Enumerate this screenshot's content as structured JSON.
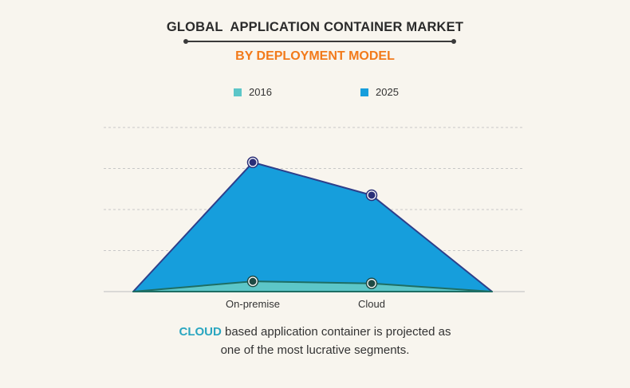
{
  "header": {
    "title": "GLOBAL  APPLICATION CONTAINER MARKET",
    "subtitle": "BY DEPLOYMENT MODEL"
  },
  "colors": {
    "series_2016_fill": "#5cc6c8",
    "series_2016_line": "#1e6e64",
    "series_2025_fill": "#169edc",
    "series_2025_line": "#2e3f8a",
    "gridline": "#c8c8c8",
    "title_orange": "#f27a1a",
    "highlight_teal": "#2aa6c0"
  },
  "chart_data": {
    "type": "area",
    "categories": [
      "On-premise",
      "Cloud"
    ],
    "series": [
      {
        "name": "2016",
        "values": [
          2.5,
          2.0
        ]
      },
      {
        "name": "2025",
        "values": [
          31.5,
          23.5
        ]
      }
    ],
    "ylim": [
      0,
      40
    ],
    "grid": true,
    "legend_position": "top",
    "xlabel": "",
    "ylabel": ""
  },
  "footnote": {
    "highlight": "CLOUD",
    "line1_rest": " based application container is projected as",
    "line2": "one of the most lucrative segments."
  }
}
